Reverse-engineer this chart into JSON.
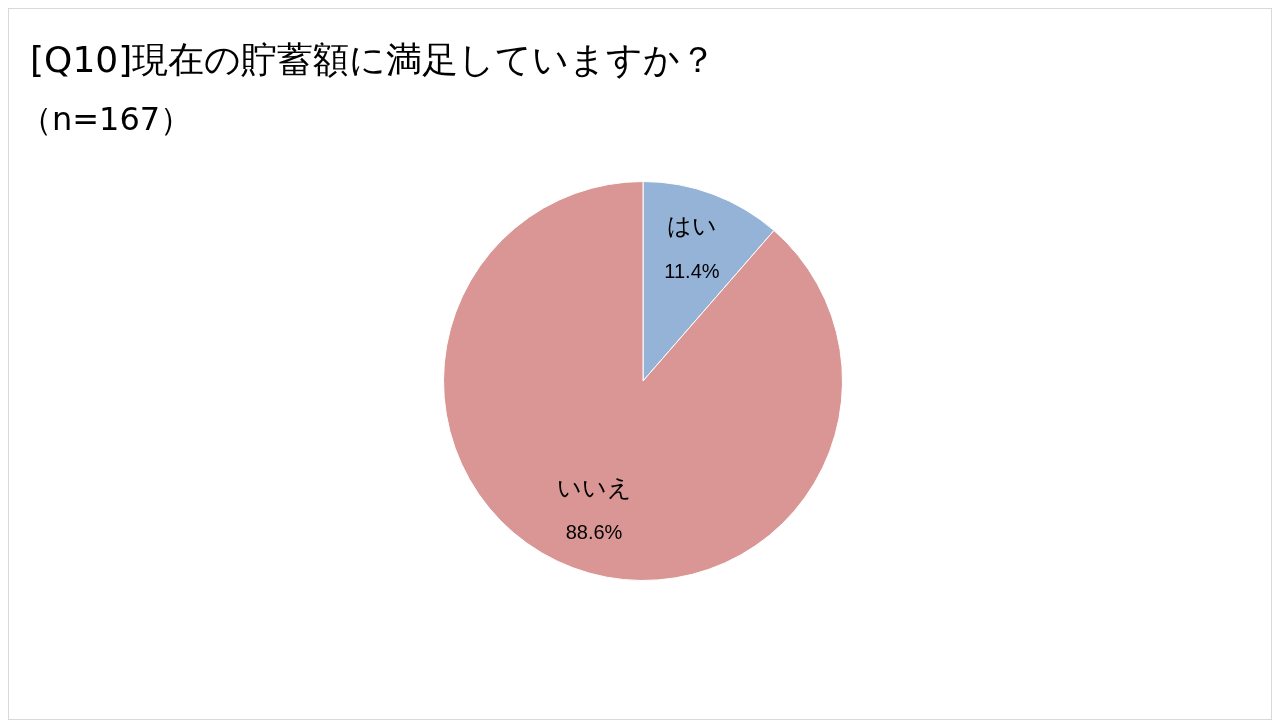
{
  "chart_data": {
    "type": "pie",
    "title": "[Q10]現在の貯蓄額に満足していますか？",
    "subtitle": "（n=167）",
    "categories": [
      "はい",
      "いいえ"
    ],
    "values": [
      11.4,
      88.6
    ],
    "colors": [
      "#95b3d7",
      "#d99694"
    ],
    "value_labels": [
      "11.4%",
      "88.6%"
    ],
    "legend": false
  }
}
